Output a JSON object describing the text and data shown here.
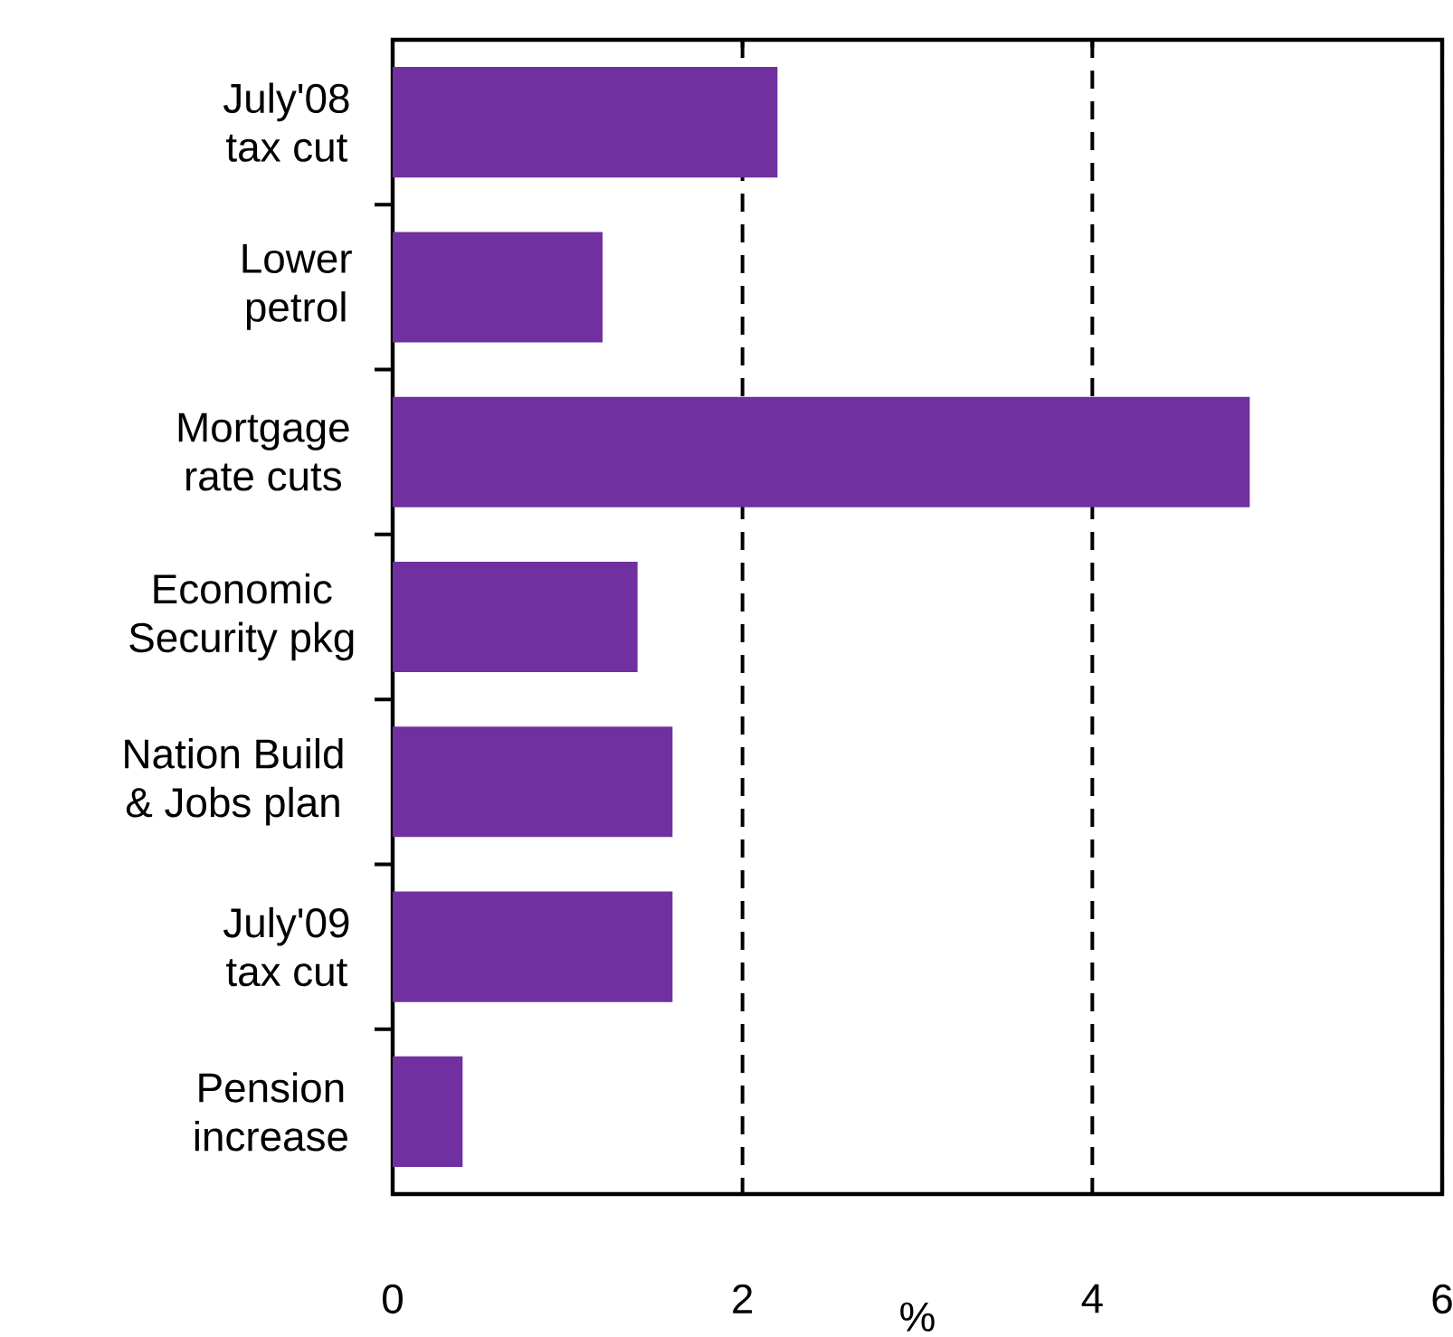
{
  "chart_data": {
    "type": "bar",
    "orientation": "horizontal",
    "categories": [
      "July'08 tax cut",
      "Lower petrol",
      "Mortgage rate cuts",
      "Economic Security pkg",
      "Nation Build & Jobs plan",
      "July'09 tax cut",
      "Pension increase"
    ],
    "values": [
      2.2,
      1.2,
      4.9,
      1.4,
      1.6,
      1.6,
      0.4
    ],
    "color": "#7030a0",
    "xlabel": "%",
    "xlim": [
      0,
      6
    ],
    "xticks": [
      0,
      2,
      4,
      6
    ],
    "grid": "x"
  }
}
